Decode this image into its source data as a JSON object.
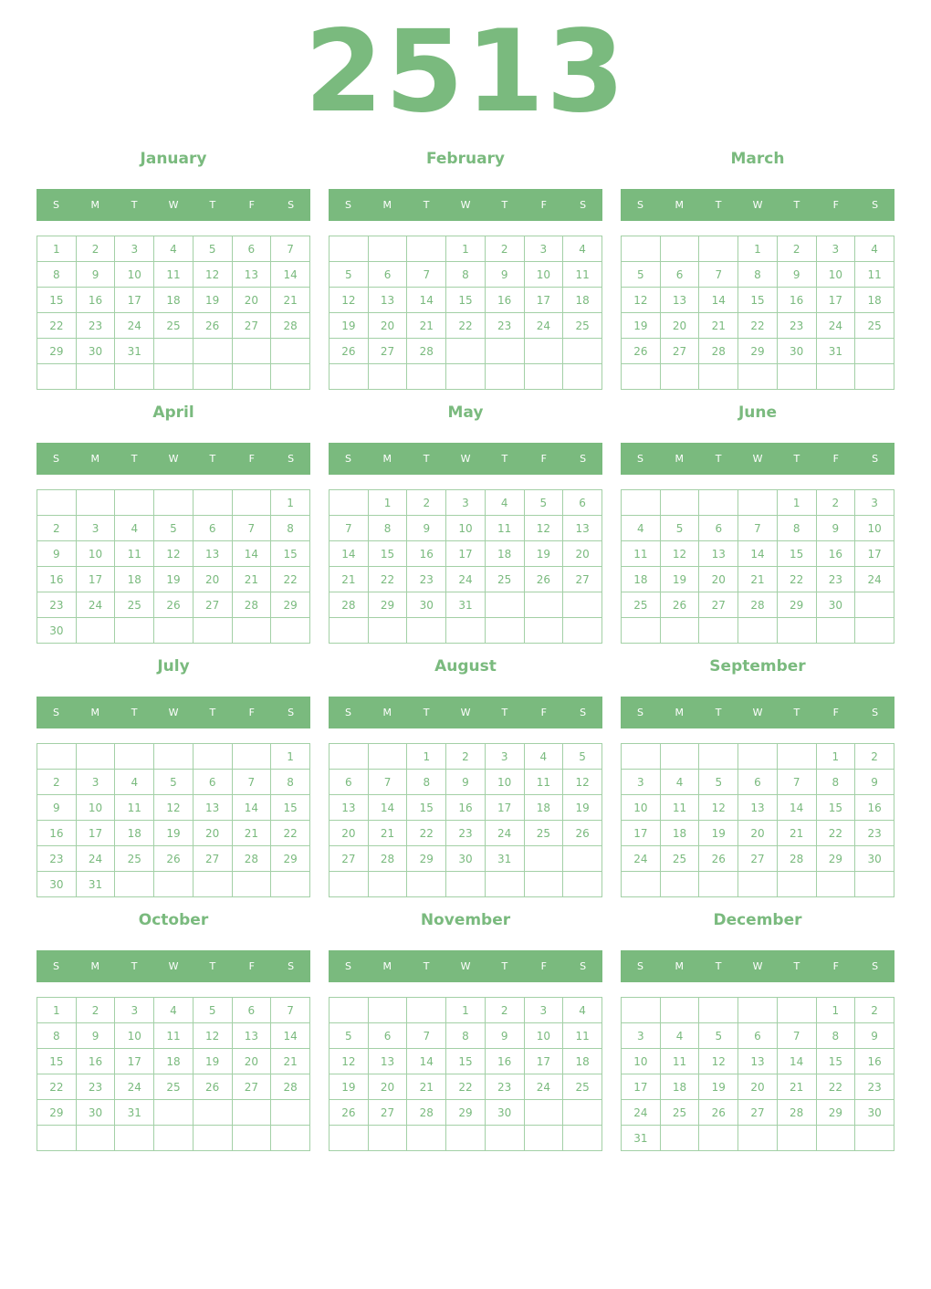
{
  "year": "2513",
  "accent_color": "#7aba7e",
  "weekdays": [
    "S",
    "M",
    "T",
    "W",
    "T",
    "F",
    "S"
  ],
  "months": [
    {
      "name": "January",
      "weeks": [
        [
          1,
          2,
          3,
          4,
          5,
          6,
          7
        ],
        [
          8,
          9,
          10,
          11,
          12,
          13,
          14
        ],
        [
          15,
          16,
          17,
          18,
          19,
          20,
          21
        ],
        [
          22,
          23,
          24,
          25,
          26,
          27,
          28
        ],
        [
          29,
          30,
          31,
          "",
          "",
          "",
          ""
        ],
        [
          "",
          "",
          "",
          "",
          "",
          "",
          ""
        ]
      ]
    },
    {
      "name": "February",
      "weeks": [
        [
          "",
          "",
          "",
          1,
          2,
          3,
          4
        ],
        [
          5,
          6,
          7,
          8,
          9,
          10,
          11
        ],
        [
          12,
          13,
          14,
          15,
          16,
          17,
          18
        ],
        [
          19,
          20,
          21,
          22,
          23,
          24,
          25
        ],
        [
          26,
          27,
          28,
          "",
          "",
          "",
          ""
        ],
        [
          "",
          "",
          "",
          "",
          "",
          "",
          ""
        ]
      ]
    },
    {
      "name": "March",
      "weeks": [
        [
          "",
          "",
          "",
          1,
          2,
          3,
          4
        ],
        [
          5,
          6,
          7,
          8,
          9,
          10,
          11
        ],
        [
          12,
          13,
          14,
          15,
          16,
          17,
          18
        ],
        [
          19,
          20,
          21,
          22,
          23,
          24,
          25
        ],
        [
          26,
          27,
          28,
          29,
          30,
          31,
          ""
        ],
        [
          "",
          "",
          "",
          "",
          "",
          "",
          ""
        ]
      ]
    },
    {
      "name": "April",
      "weeks": [
        [
          "",
          "",
          "",
          "",
          "",
          "",
          1
        ],
        [
          2,
          3,
          4,
          5,
          6,
          7,
          8
        ],
        [
          9,
          10,
          11,
          12,
          13,
          14,
          15
        ],
        [
          16,
          17,
          18,
          19,
          20,
          21,
          22
        ],
        [
          23,
          24,
          25,
          26,
          27,
          28,
          29
        ],
        [
          30,
          "",
          "",
          "",
          "",
          "",
          ""
        ]
      ]
    },
    {
      "name": "May",
      "weeks": [
        [
          "",
          1,
          2,
          3,
          4,
          5,
          6
        ],
        [
          7,
          8,
          9,
          10,
          11,
          12,
          13
        ],
        [
          14,
          15,
          16,
          17,
          18,
          19,
          20
        ],
        [
          21,
          22,
          23,
          24,
          25,
          26,
          27
        ],
        [
          28,
          29,
          30,
          31,
          "",
          "",
          ""
        ],
        [
          "",
          "",
          "",
          "",
          "",
          "",
          ""
        ]
      ]
    },
    {
      "name": "June",
      "weeks": [
        [
          "",
          "",
          "",
          "",
          1,
          2,
          3
        ],
        [
          4,
          5,
          6,
          7,
          8,
          9,
          10
        ],
        [
          11,
          12,
          13,
          14,
          15,
          16,
          17
        ],
        [
          18,
          19,
          20,
          21,
          22,
          23,
          24
        ],
        [
          25,
          26,
          27,
          28,
          29,
          30,
          ""
        ],
        [
          "",
          "",
          "",
          "",
          "",
          "",
          ""
        ]
      ]
    },
    {
      "name": "July",
      "weeks": [
        [
          "",
          "",
          "",
          "",
          "",
          "",
          1
        ],
        [
          2,
          3,
          4,
          5,
          6,
          7,
          8
        ],
        [
          9,
          10,
          11,
          12,
          13,
          14,
          15
        ],
        [
          16,
          17,
          18,
          19,
          20,
          21,
          22
        ],
        [
          23,
          24,
          25,
          26,
          27,
          28,
          29
        ],
        [
          30,
          31,
          "",
          "",
          "",
          "",
          ""
        ]
      ]
    },
    {
      "name": "August",
      "weeks": [
        [
          "",
          "",
          1,
          2,
          3,
          4,
          5
        ],
        [
          6,
          7,
          8,
          9,
          10,
          11,
          12
        ],
        [
          13,
          14,
          15,
          16,
          17,
          18,
          19
        ],
        [
          20,
          21,
          22,
          23,
          24,
          25,
          26
        ],
        [
          27,
          28,
          29,
          30,
          31,
          "",
          ""
        ],
        [
          "",
          "",
          "",
          "",
          "",
          "",
          ""
        ]
      ]
    },
    {
      "name": "September",
      "weeks": [
        [
          "",
          "",
          "",
          "",
          "",
          1,
          2
        ],
        [
          3,
          4,
          5,
          6,
          7,
          8,
          9
        ],
        [
          10,
          11,
          12,
          13,
          14,
          15,
          16
        ],
        [
          17,
          18,
          19,
          20,
          21,
          22,
          23
        ],
        [
          24,
          25,
          26,
          27,
          28,
          29,
          30
        ],
        [
          "",
          "",
          "",
          "",
          "",
          "",
          ""
        ]
      ]
    },
    {
      "name": "October",
      "weeks": [
        [
          1,
          2,
          3,
          4,
          5,
          6,
          7
        ],
        [
          8,
          9,
          10,
          11,
          12,
          13,
          14
        ],
        [
          15,
          16,
          17,
          18,
          19,
          20,
          21
        ],
        [
          22,
          23,
          24,
          25,
          26,
          27,
          28
        ],
        [
          29,
          30,
          31,
          "",
          "",
          "",
          ""
        ],
        [
          "",
          "",
          "",
          "",
          "",
          "",
          ""
        ]
      ]
    },
    {
      "name": "November",
      "weeks": [
        [
          "",
          "",
          "",
          1,
          2,
          3,
          4
        ],
        [
          5,
          6,
          7,
          8,
          9,
          10,
          11
        ],
        [
          12,
          13,
          14,
          15,
          16,
          17,
          18
        ],
        [
          19,
          20,
          21,
          22,
          23,
          24,
          25
        ],
        [
          26,
          27,
          28,
          29,
          30,
          "",
          ""
        ],
        [
          "",
          "",
          "",
          "",
          "",
          "",
          ""
        ]
      ]
    },
    {
      "name": "December",
      "weeks": [
        [
          "",
          "",
          "",
          "",
          "",
          1,
          2
        ],
        [
          3,
          4,
          5,
          6,
          7,
          8,
          9
        ],
        [
          10,
          11,
          12,
          13,
          14,
          15,
          16
        ],
        [
          17,
          18,
          19,
          20,
          21,
          22,
          23
        ],
        [
          24,
          25,
          26,
          27,
          28,
          29,
          30
        ],
        [
          31,
          "",
          "",
          "",
          "",
          "",
          ""
        ]
      ]
    }
  ]
}
